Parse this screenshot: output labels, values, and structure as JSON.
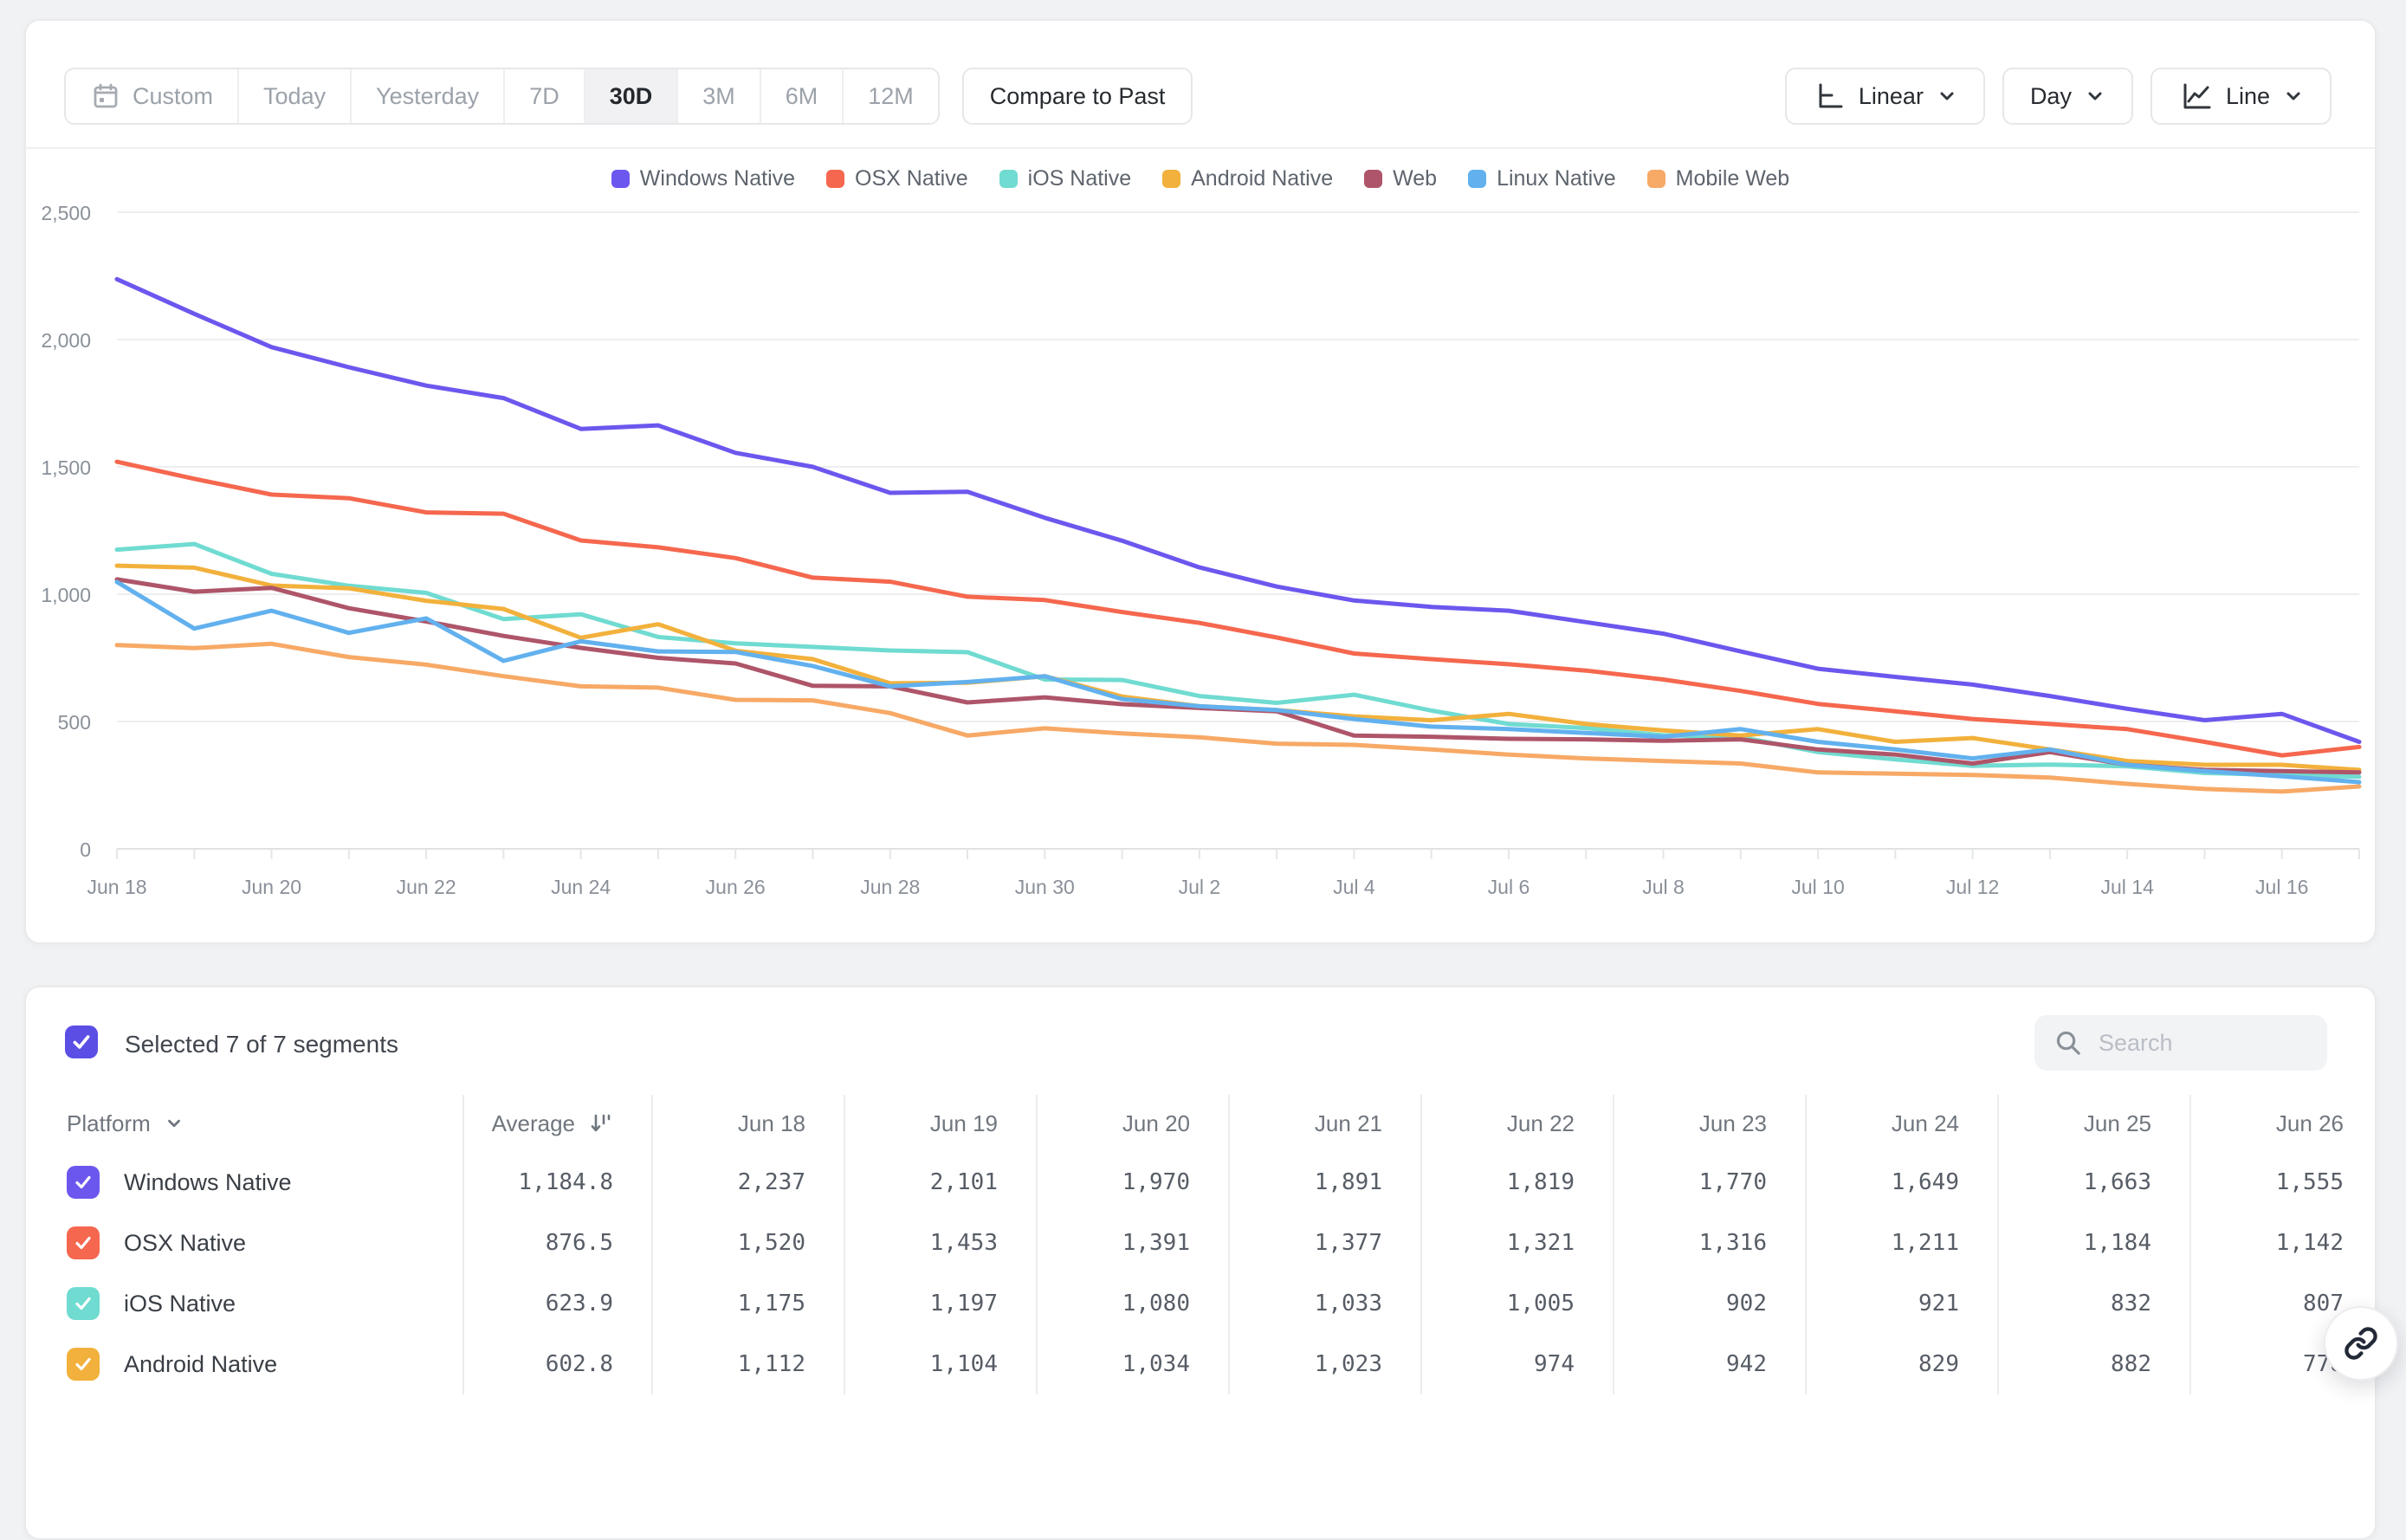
{
  "toolbar": {
    "ranges": [
      {
        "label": "Custom",
        "icon": "calendar"
      },
      {
        "label": "Today"
      },
      {
        "label": "Yesterday"
      },
      {
        "label": "7D"
      },
      {
        "label": "30D",
        "active": true
      },
      {
        "label": "3M"
      },
      {
        "label": "6M"
      },
      {
        "label": "12M"
      }
    ],
    "compare_label": "Compare to Past",
    "scale_label": "Linear",
    "granularity_label": "Day",
    "chart_type_label": "Line"
  },
  "colors": {
    "accent": "#5B4EE4",
    "grid": "#EDEEF0",
    "axis_baseline": "#DFE1E3"
  },
  "chart_data": {
    "type": "line",
    "title": "",
    "xlabel": "",
    "ylabel": "",
    "grid": true,
    "legend_position": "top",
    "ylim": [
      0,
      2500
    ],
    "yticks": [
      {
        "v": 0,
        "label": "0"
      },
      {
        "v": 500,
        "label": "500"
      },
      {
        "v": 1000,
        "label": "1,000"
      },
      {
        "v": 1500,
        "label": "1,500"
      },
      {
        "v": 2000,
        "label": "2,000"
      },
      {
        "v": 2500,
        "label": "2,500"
      }
    ],
    "x": [
      "Jun 18",
      "Jun 19",
      "Jun 20",
      "Jun 21",
      "Jun 22",
      "Jun 23",
      "Jun 24",
      "Jun 25",
      "Jun 26",
      "Jun 27",
      "Jun 28",
      "Jun 29",
      "Jun 30",
      "Jul 1",
      "Jul 2",
      "Jul 3",
      "Jul 4",
      "Jul 5",
      "Jul 6",
      "Jul 7",
      "Jul 8",
      "Jul 9",
      "Jul 10",
      "Jul 11",
      "Jul 12",
      "Jul 13",
      "Jul 14",
      "Jul 15",
      "Jul 16",
      "Jul 17"
    ],
    "x_tick_labels": [
      "Jun 18",
      "Jun 20",
      "Jun 22",
      "Jun 24",
      "Jun 26",
      "Jun 28",
      "Jun 30",
      "Jul 2",
      "Jul 4",
      "Jul 6",
      "Jul 8",
      "Jul 10",
      "Jul 12",
      "Jul 14",
      "Jul 16"
    ],
    "series": [
      {
        "name": "Windows Native",
        "color": "#6C57EE",
        "values": [
          2237,
          2101,
          1970,
          1891,
          1819,
          1770,
          1649,
          1663,
          1555,
          1500,
          1398,
          1402,
          1300,
          1210,
          1105,
          1030,
          975,
          950,
          935,
          890,
          845,
          775,
          707,
          675,
          645,
          600,
          550,
          505,
          530,
          420
        ]
      },
      {
        "name": "OSX Native",
        "color": "#F5674E",
        "values": [
          1520,
          1453,
          1391,
          1377,
          1321,
          1316,
          1211,
          1184,
          1142,
          1065,
          1049,
          990,
          977,
          930,
          887,
          830,
          767,
          745,
          725,
          700,
          665,
          620,
          569,
          540,
          510,
          490,
          470,
          420,
          367,
          400
        ]
      },
      {
        "name": "iOS Native",
        "color": "#70DBD1",
        "values": [
          1175,
          1197,
          1080,
          1033,
          1005,
          902,
          921,
          832,
          807,
          793,
          779,
          772,
          665,
          663,
          600,
          573,
          605,
          543,
          490,
          474,
          446,
          439,
          380,
          351,
          326,
          331,
          324,
          298,
          290,
          283
        ]
      },
      {
        "name": "Android Native",
        "color": "#F2B13C",
        "values": [
          1112,
          1104,
          1034,
          1023,
          974,
          942,
          829,
          882,
          778,
          745,
          650,
          652,
          678,
          598,
          560,
          545,
          520,
          505,
          530,
          490,
          465,
          445,
          470,
          420,
          435,
          390,
          345,
          330,
          330,
          310
        ]
      },
      {
        "name": "Web",
        "color": "#AE5569",
        "values": [
          1058,
          1010,
          1025,
          945,
          893,
          836,
          789,
          750,
          728,
          640,
          638,
          575,
          595,
          568,
          553,
          540,
          445,
          440,
          432,
          430,
          424,
          430,
          390,
          370,
          335,
          380,
          330,
          310,
          305,
          300
        ]
      },
      {
        "name": "Linux Native",
        "color": "#62B1EE",
        "values": [
          1048,
          865,
          935,
          848,
          905,
          738,
          815,
          775,
          773,
          718,
          638,
          655,
          678,
          588,
          560,
          545,
          510,
          480,
          470,
          455,
          440,
          470,
          420,
          390,
          355,
          390,
          330,
          305,
          285,
          262
        ]
      },
      {
        "name": "Mobile Web",
        "color": "#F7A966",
        "values": [
          800,
          788,
          805,
          753,
          723,
          678,
          638,
          633,
          585,
          583,
          533,
          445,
          473,
          453,
          438,
          413,
          408,
          390,
          370,
          355,
          345,
          335,
          300,
          295,
          290,
          280,
          255,
          235,
          225,
          245
        ]
      }
    ]
  },
  "segments_panel": {
    "selected_summary": "Selected 7 of 7 segments",
    "search_placeholder": "Search",
    "table": {
      "platform_header": "Platform",
      "average_header": "Average",
      "date_headers": [
        "Jun 18",
        "Jun 19",
        "Jun 20",
        "Jun 21",
        "Jun 22",
        "Jun 23",
        "Jun 24",
        "Jun 25",
        "Jun 26"
      ],
      "rows": [
        {
          "name": "Windows Native",
          "color": "#6C57EE",
          "checked": true,
          "average": "1,184.8",
          "values": [
            "2,237",
            "2,101",
            "1,970",
            "1,891",
            "1,819",
            "1,770",
            "1,649",
            "1,663",
            "1,555"
          ]
        },
        {
          "name": "OSX Native",
          "color": "#F5674E",
          "checked": true,
          "average": "876.5",
          "values": [
            "1,520",
            "1,453",
            "1,391",
            "1,377",
            "1,321",
            "1,316",
            "1,211",
            "1,184",
            "1,142"
          ]
        },
        {
          "name": "iOS Native",
          "color": "#70DBD1",
          "checked": true,
          "average": "623.9",
          "values": [
            "1,175",
            "1,197",
            "1,080",
            "1,033",
            "1,005",
            "902",
            "921",
            "832",
            "807"
          ]
        },
        {
          "name": "Android Native",
          "color": "#F2B13C",
          "checked": true,
          "average": "602.8",
          "values": [
            "1,112",
            "1,104",
            "1,034",
            "1,023",
            "974",
            "942",
            "829",
            "882",
            "778"
          ]
        }
      ]
    }
  }
}
